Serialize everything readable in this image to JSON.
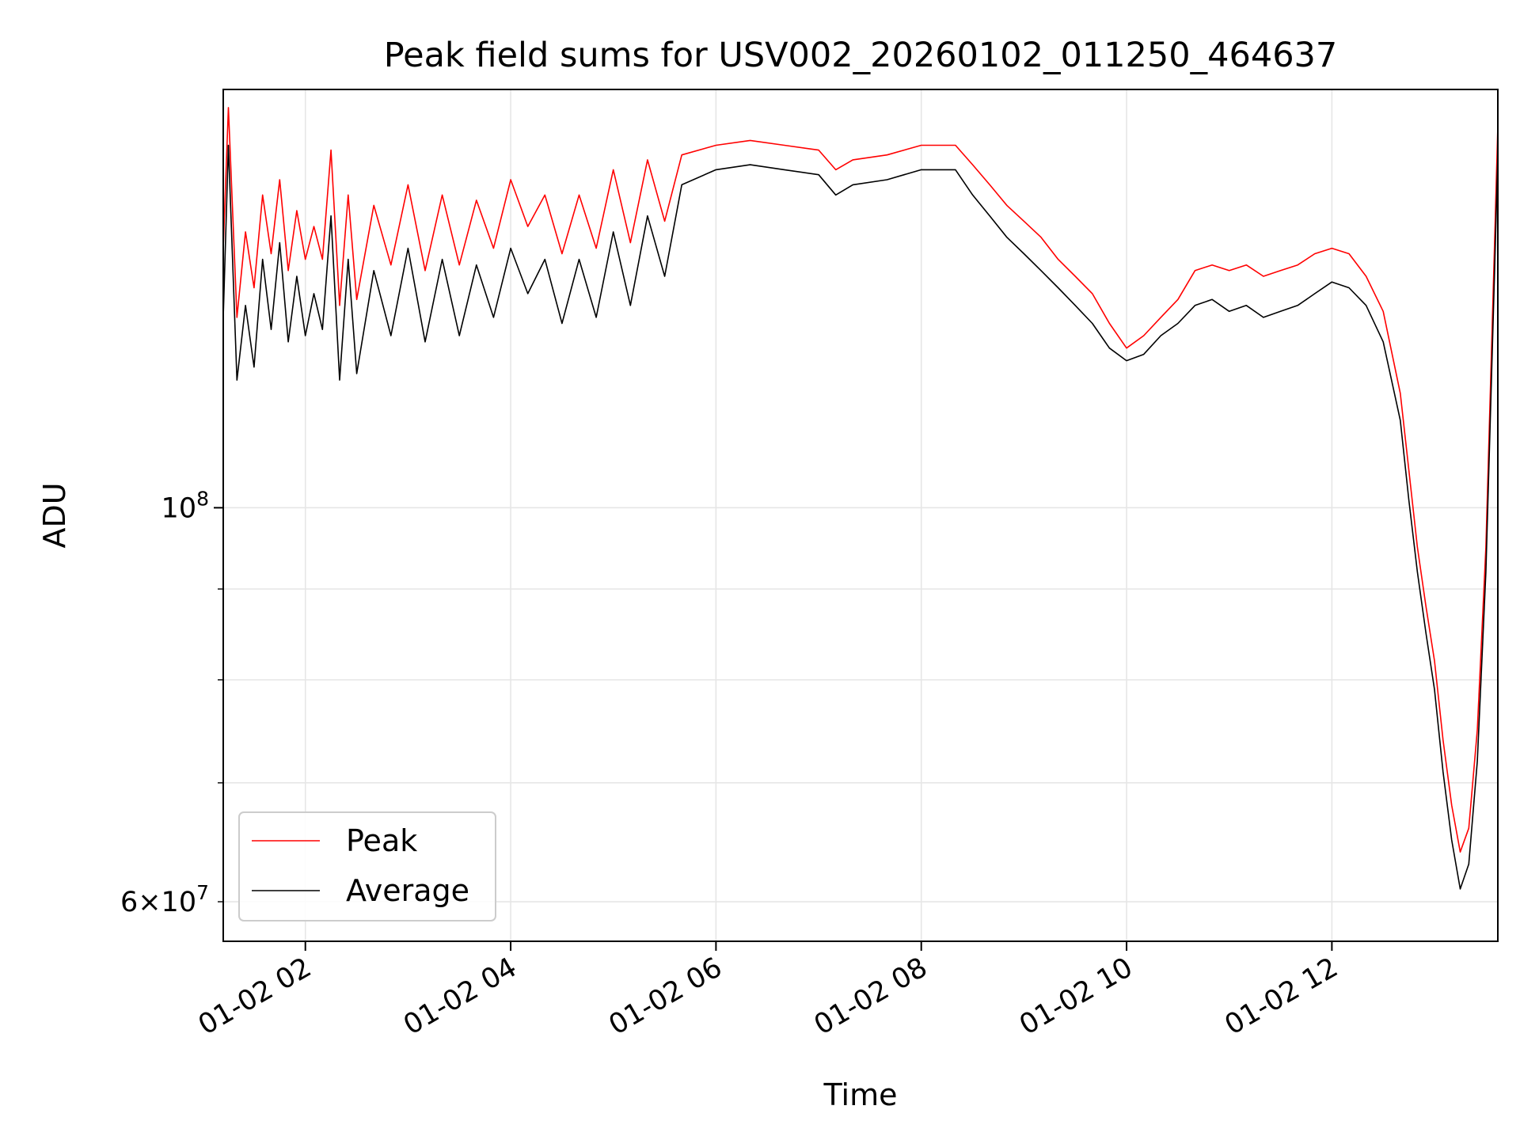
{
  "chart_data": {
    "type": "line",
    "title": "Peak field sums for USV002_20260102_011250_464637",
    "xlabel": "Time",
    "ylabel": "ADU",
    "x_axis": {
      "type": "datetime",
      "range": [
        "2026-01-02 01:12",
        "2026-01-02 13:37"
      ],
      "tick_labels": [
        "01-02 02",
        "01-02 04",
        "01-02 06",
        "01-02 08",
        "01-02 10",
        "01-02 12"
      ],
      "tick_hours": [
        2,
        4,
        6,
        8,
        10,
        12
      ]
    },
    "y_axis": {
      "scale": "log",
      "range": [
        57000000,
        172000000
      ],
      "major_ticks": [
        {
          "value": 100000000,
          "base": "10",
          "exp": "8"
        }
      ],
      "minor_ticks": [
        {
          "value": 60000000,
          "mant": "6",
          "base": "10",
          "exp": "7"
        },
        {
          "value": 70000000
        },
        {
          "value": 80000000
        },
        {
          "value": 90000000
        }
      ]
    },
    "grid": true,
    "legend": {
      "placement": "lower-left"
    },
    "series": [
      {
        "name": "Peak",
        "color": "#ff0000",
        "x": [
          "01:12",
          "01:15",
          "01:20",
          "01:25",
          "01:30",
          "01:35",
          "01:40",
          "01:45",
          "01:50",
          "01:55",
          "02:00",
          "02:05",
          "02:10",
          "02:15",
          "02:20",
          "02:25",
          "02:30",
          "02:40",
          "02:50",
          "03:00",
          "03:10",
          "03:20",
          "03:30",
          "03:40",
          "03:50",
          "04:00",
          "04:10",
          "04:20",
          "04:30",
          "04:40",
          "04:50",
          "05:00",
          "05:10",
          "05:20",
          "05:30",
          "05:40",
          "06:00",
          "06:20",
          "06:40",
          "07:00",
          "07:10",
          "07:20",
          "07:40",
          "08:00",
          "08:20",
          "08:30",
          "08:40",
          "08:50",
          "09:00",
          "09:10",
          "09:20",
          "09:30",
          "09:40",
          "09:50",
          "10:00",
          "10:10",
          "10:20",
          "10:30",
          "10:40",
          "10:50",
          "11:00",
          "11:10",
          "11:20",
          "11:30",
          "11:40",
          "11:50",
          "12:00",
          "12:10",
          "12:20",
          "12:30",
          "12:40",
          "12:45",
          "12:50",
          "12:55",
          "13:00",
          "13:05",
          "13:10",
          "13:15",
          "13:20",
          "13:25",
          "13:30",
          "13:35",
          "13:37"
        ],
        "y": [
          140000000,
          168000000,
          128000000,
          143000000,
          133000000,
          150000000,
          139000000,
          153000000,
          136000000,
          147000000,
          138000000,
          144000000,
          138000000,
          159000000,
          130000000,
          150000000,
          131000000,
          148000000,
          137000000,
          152000000,
          136000000,
          150000000,
          137000000,
          149000000,
          140000000,
          153000000,
          144000000,
          150000000,
          139000000,
          150000000,
          140000000,
          155000000,
          141000000,
          157000000,
          145000000,
          158000000,
          160000000,
          161000000,
          160000000,
          159000000,
          155000000,
          157000000,
          158000000,
          160000000,
          160000000,
          156000000,
          152000000,
          148000000,
          145000000,
          142000000,
          138000000,
          135000000,
          132000000,
          127000000,
          123000000,
          125000000,
          128000000,
          131000000,
          136000000,
          137000000,
          136000000,
          137000000,
          135000000,
          136000000,
          137000000,
          139000000,
          140000000,
          139000000,
          135000000,
          129000000,
          116000000,
          105000000,
          95000000,
          88000000,
          82000000,
          74000000,
          68000000,
          64000000,
          66000000,
          75000000,
          95000000,
          140000000,
          164000000
        ]
      },
      {
        "name": "Average",
        "color": "#000000",
        "x": [
          "01:12",
          "01:15",
          "01:20",
          "01:25",
          "01:30",
          "01:35",
          "01:40",
          "01:45",
          "01:50",
          "01:55",
          "02:00",
          "02:05",
          "02:10",
          "02:15",
          "02:20",
          "02:25",
          "02:30",
          "02:40",
          "02:50",
          "03:00",
          "03:10",
          "03:20",
          "03:30",
          "03:40",
          "03:50",
          "04:00",
          "04:10",
          "04:20",
          "04:30",
          "04:40",
          "04:50",
          "05:00",
          "05:10",
          "05:20",
          "05:30",
          "05:40",
          "06:00",
          "06:20",
          "06:40",
          "07:00",
          "07:10",
          "07:20",
          "07:40",
          "08:00",
          "08:20",
          "08:30",
          "08:40",
          "08:50",
          "09:00",
          "09:10",
          "09:20",
          "09:30",
          "09:40",
          "09:50",
          "10:00",
          "10:10",
          "10:20",
          "10:30",
          "10:40",
          "10:50",
          "11:00",
          "11:10",
          "11:20",
          "11:30",
          "11:40",
          "11:50",
          "12:00",
          "12:10",
          "12:20",
          "12:30",
          "12:40",
          "12:45",
          "12:50",
          "12:55",
          "13:00",
          "13:05",
          "13:10",
          "13:15",
          "13:20",
          "13:25",
          "13:30",
          "13:35",
          "13:37"
        ],
        "y": [
          128000000,
          160000000,
          118000000,
          130000000,
          120000000,
          138000000,
          126000000,
          141000000,
          124000000,
          135000000,
          125000000,
          132000000,
          126000000,
          146000000,
          118000000,
          138000000,
          119000000,
          136000000,
          125000000,
          140000000,
          124000000,
          138000000,
          125000000,
          137000000,
          128000000,
          140000000,
          132000000,
          138000000,
          127000000,
          138000000,
          128000000,
          143000000,
          130000000,
          146000000,
          135000000,
          152000000,
          155000000,
          156000000,
          155000000,
          154000000,
          150000000,
          152000000,
          153000000,
          155000000,
          155000000,
          150000000,
          146000000,
          142000000,
          139000000,
          136000000,
          133000000,
          130000000,
          127000000,
          123000000,
          121000000,
          122000000,
          125000000,
          127000000,
          130000000,
          131000000,
          129000000,
          130000000,
          128000000,
          129000000,
          130000000,
          132000000,
          134000000,
          133000000,
          130000000,
          124000000,
          112000000,
          101000000,
          92000000,
          85000000,
          79000000,
          71000000,
          65000000,
          61000000,
          63000000,
          72000000,
          92000000,
          135000000,
          158000000
        ]
      }
    ]
  }
}
